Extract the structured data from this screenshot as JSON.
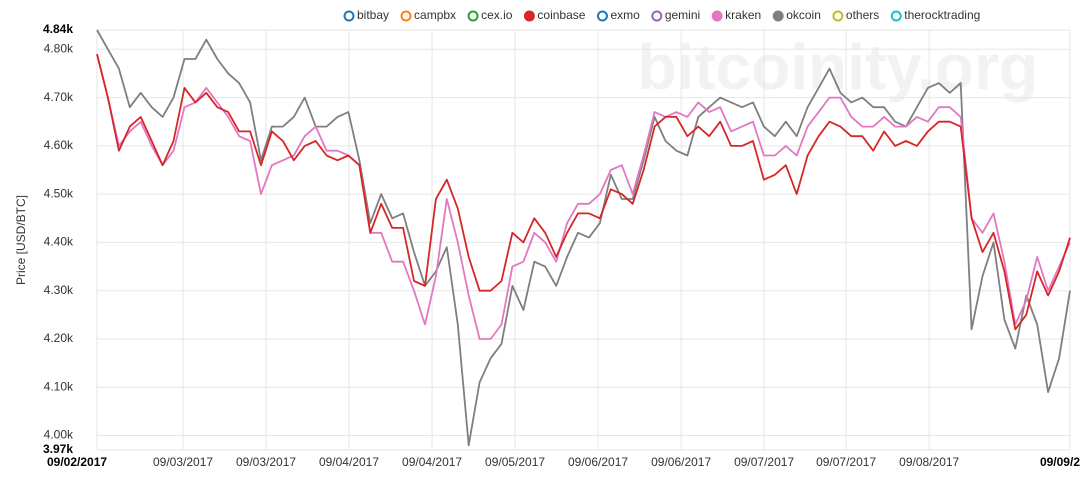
{
  "chart_data": {
    "type": "line",
    "watermark": "bitcoinity.org",
    "y_label": "Price [USD/BTC]",
    "ylim": [
      3970,
      4840
    ],
    "yticks": [
      {
        "value": 3970,
        "label": "3.97k"
      },
      {
        "value": 4000,
        "label": "4.00k"
      },
      {
        "value": 4100,
        "label": "4.10k"
      },
      {
        "value": 4200,
        "label": "4.20k"
      },
      {
        "value": 4300,
        "label": "4.30k"
      },
      {
        "value": 4400,
        "label": "4.40k"
      },
      {
        "value": 4500,
        "label": "4.50k"
      },
      {
        "value": 4600,
        "label": "4.60k"
      },
      {
        "value": 4700,
        "label": "4.70k"
      },
      {
        "value": 4800,
        "label": "4.80k"
      },
      {
        "value": 4840,
        "label": "4.84k"
      }
    ],
    "xlim": [
      0,
      89
    ],
    "xticks": [
      {
        "value": 0,
        "label": "09/02/2017"
      },
      {
        "value": 7.87,
        "label": "09/03/2017"
      },
      {
        "value": 15.46,
        "label": "09/03/2017"
      },
      {
        "value": 23.05,
        "label": "09/04/2017"
      },
      {
        "value": 30.65,
        "label": "09/04/2017"
      },
      {
        "value": 38.24,
        "label": "09/05/2017"
      },
      {
        "value": 45.83,
        "label": "09/06/2017"
      },
      {
        "value": 53.43,
        "label": "09/06/2017"
      },
      {
        "value": 61.02,
        "label": "09/07/2017"
      },
      {
        "value": 68.52,
        "label": "09/07/2017"
      },
      {
        "value": 76.12,
        "label": "09/08/2017"
      },
      {
        "value": 89,
        "label": "09/09/2"
      }
    ],
    "grid": true,
    "legend": [
      {
        "name": "bitbay",
        "color": "#1f77b4",
        "active": false
      },
      {
        "name": "campbx",
        "color": "#ff7f0e",
        "active": false
      },
      {
        "name": "cex.io",
        "color": "#2ca02c",
        "active": false
      },
      {
        "name": "coinbase",
        "color": "#d62728",
        "active": true
      },
      {
        "name": "exmo",
        "color": "#1f77b4",
        "active": false
      },
      {
        "name": "gemini",
        "color": "#9467bd",
        "active": false
      },
      {
        "name": "kraken",
        "color": "#e377c2",
        "active": true
      },
      {
        "name": "okcoin",
        "color": "#7f7f7f",
        "active": true
      },
      {
        "name": "others",
        "color": "#bcbd22",
        "active": false
      },
      {
        "name": "therocktrading",
        "color": "#17becf",
        "active": false
      }
    ],
    "series": [
      {
        "name": "okcoin",
        "color": "#7f7f7f",
        "values": [
          4840,
          4800,
          4760,
          4680,
          4710,
          4680,
          4660,
          4700,
          4780,
          4780,
          4820,
          4780,
          4750,
          4730,
          4690,
          4570,
          4640,
          4640,
          4660,
          4700,
          4640,
          4640,
          4660,
          4670,
          4570,
          4440,
          4500,
          4450,
          4460,
          4380,
          4310,
          4340,
          4390,
          4230,
          3980,
          4110,
          4160,
          4190,
          4310,
          4260,
          4360,
          4350,
          4310,
          4370,
          4420,
          4410,
          4440,
          4540,
          4490,
          4490,
          4570,
          4660,
          4610,
          4590,
          4580,
          4660,
          4680,
          4700,
          4690,
          4680,
          4690,
          4640,
          4620,
          4650,
          4620,
          4680,
          4720,
          4760,
          4710,
          4690,
          4700,
          4680,
          4680,
          4650,
          4640,
          4680,
          4720,
          4730,
          4710,
          4730,
          4220,
          4330,
          4400,
          4240,
          4180,
          4290,
          4230,
          4090,
          4160,
          4300
        ]
      },
      {
        "name": "kraken",
        "color": "#e377c2",
        "values": [
          4790,
          4700,
          4600,
          4630,
          4650,
          4600,
          4560,
          4590,
          4680,
          4690,
          4720,
          4690,
          4660,
          4620,
          4610,
          4500,
          4560,
          4570,
          4580,
          4620,
          4640,
          4590,
          4590,
          4580,
          4560,
          4420,
          4420,
          4360,
          4360,
          4300,
          4230,
          4330,
          4490,
          4400,
          4290,
          4200,
          4200,
          4230,
          4350,
          4360,
          4420,
          4400,
          4360,
          4440,
          4480,
          4480,
          4500,
          4550,
          4560,
          4500,
          4580,
          4670,
          4660,
          4670,
          4660,
          4690,
          4670,
          4680,
          4630,
          4640,
          4650,
          4580,
          4580,
          4600,
          4580,
          4640,
          4670,
          4700,
          4700,
          4660,
          4640,
          4640,
          4660,
          4640,
          4640,
          4660,
          4650,
          4680,
          4680,
          4660,
          4450,
          4420,
          4460,
          4360,
          4230,
          4280,
          4370,
          4300,
          4350,
          4400
        ]
      },
      {
        "name": "coinbase",
        "color": "#d62728",
        "values": [
          4790,
          4700,
          4590,
          4640,
          4660,
          4610,
          4560,
          4610,
          4720,
          4690,
          4710,
          4680,
          4670,
          4630,
          4630,
          4560,
          4630,
          4610,
          4570,
          4600,
          4610,
          4580,
          4570,
          4580,
          4560,
          4420,
          4480,
          4430,
          4430,
          4320,
          4310,
          4490,
          4530,
          4470,
          4370,
          4300,
          4300,
          4320,
          4420,
          4400,
          4450,
          4420,
          4370,
          4420,
          4460,
          4460,
          4450,
          4510,
          4500,
          4480,
          4550,
          4640,
          4660,
          4660,
          4620,
          4640,
          4620,
          4650,
          4600,
          4600,
          4610,
          4530,
          4540,
          4560,
          4500,
          4580,
          4620,
          4650,
          4640,
          4620,
          4620,
          4590,
          4630,
          4600,
          4610,
          4600,
          4630,
          4650,
          4650,
          4640,
          4450,
          4380,
          4420,
          4340,
          4220,
          4250,
          4340,
          4290,
          4340,
          4410
        ]
      }
    ]
  }
}
